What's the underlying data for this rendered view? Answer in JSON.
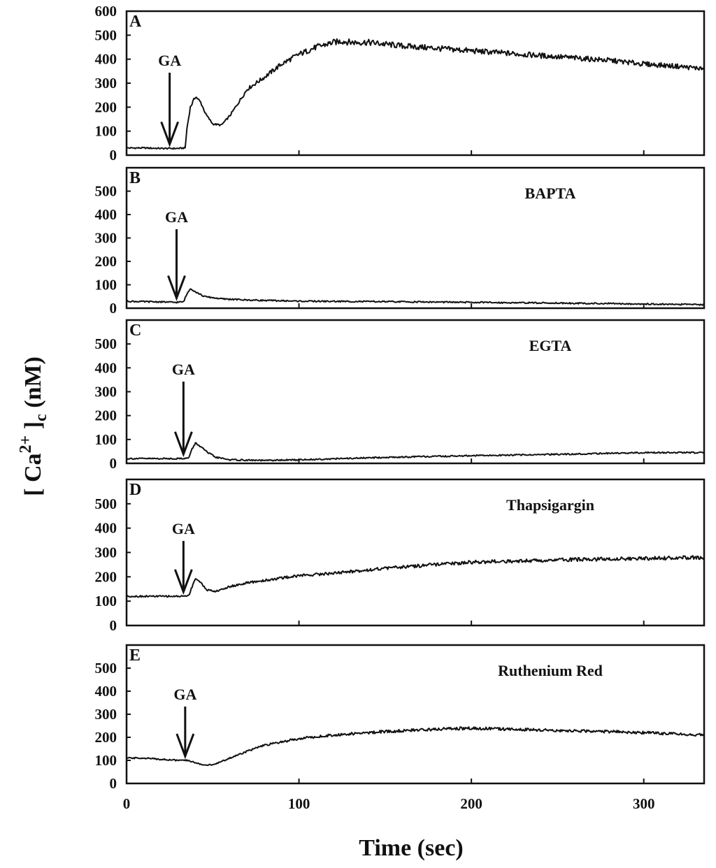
{
  "figure": {
    "ylabel_main": "[ Ca",
    "ylabel_sup": "2+",
    "ylabel_bracket": " ]",
    "ylabel_sub": "c",
    "ylabel_unit": " (nM)",
    "xlabel": "Time (sec)"
  },
  "chart_data": [
    {
      "type": "line",
      "panel_label": "A",
      "condition": "",
      "arrow_label": "GA",
      "arrow_x": 25,
      "xlim": [
        0,
        335
      ],
      "ylim": [
        0,
        600
      ],
      "yticks": [
        "0",
        "100",
        "200",
        "300",
        "400",
        "500",
        "600"
      ],
      "xticks": [],
      "series": [
        {
          "x": [
            0,
            10,
            20,
            30,
            34,
            35,
            37,
            40,
            43,
            46,
            50,
            55,
            60,
            65,
            70,
            80,
            90,
            100,
            110,
            120,
            125,
            130,
            140,
            160,
            180,
            200,
            220,
            240,
            260,
            280,
            300,
            320,
            335
          ],
          "values": [
            30,
            30,
            28,
            28,
            30,
            110,
            200,
            245,
            220,
            170,
            130,
            125,
            165,
            220,
            275,
            325,
            380,
            420,
            450,
            470,
            475,
            470,
            470,
            455,
            445,
            435,
            425,
            415,
            405,
            395,
            380,
            370,
            360
          ]
        }
      ]
    },
    {
      "type": "line",
      "panel_label": "B",
      "condition": "BAPTA",
      "arrow_label": "GA",
      "arrow_x": 29,
      "xlim": [
        0,
        335
      ],
      "ylim": [
        0,
        600
      ],
      "yticks": [
        "0",
        "100",
        "200",
        "300",
        "400",
        "500"
      ],
      "xticks": [],
      "series": [
        {
          "x": [
            0,
            10,
            20,
            28,
            33,
            35,
            37,
            40,
            45,
            55,
            70,
            100,
            150,
            200,
            250,
            300,
            335
          ],
          "values": [
            30,
            28,
            27,
            25,
            27,
            60,
            85,
            70,
            50,
            40,
            35,
            30,
            28,
            25,
            22,
            18,
            15
          ]
        }
      ]
    },
    {
      "type": "line",
      "panel_label": "C",
      "condition": "EGTA",
      "arrow_label": "GA",
      "arrow_x": 33,
      "xlim": [
        0,
        335
      ],
      "ylim": [
        0,
        600
      ],
      "yticks": [
        "0",
        "100",
        "200",
        "300",
        "400",
        "500"
      ],
      "xticks": [],
      "series": [
        {
          "x": [
            0,
            10,
            20,
            30,
            36,
            38,
            40,
            43,
            47,
            52,
            60,
            80,
            100,
            150,
            200,
            250,
            300,
            335
          ],
          "values": [
            20,
            20,
            20,
            20,
            22,
            60,
            85,
            70,
            45,
            25,
            15,
            12,
            15,
            25,
            32,
            38,
            45,
            45
          ]
        }
      ]
    },
    {
      "type": "line",
      "panel_label": "D",
      "condition": "Thapsigargin",
      "arrow_label": "GA",
      "arrow_x": 33,
      "xlim": [
        0,
        335
      ],
      "ylim": [
        0,
        600
      ],
      "yticks": [
        "0",
        "100",
        "200",
        "300",
        "400",
        "500"
      ],
      "xticks": [],
      "series": [
        {
          "x": [
            0,
            10,
            20,
            30,
            36,
            38,
            40,
            43,
            47,
            52,
            60,
            70,
            80,
            100,
            120,
            150,
            200,
            250,
            300,
            335
          ],
          "values": [
            120,
            120,
            120,
            120,
            122,
            160,
            195,
            175,
            145,
            140,
            160,
            175,
            185,
            205,
            215,
            235,
            260,
            270,
            275,
            280
          ]
        }
      ]
    },
    {
      "type": "line",
      "panel_label": "E",
      "condition": "Ruthenium Red",
      "arrow_label": "GA",
      "arrow_x": 34,
      "xlim": [
        0,
        335
      ],
      "ylim": [
        0,
        600
      ],
      "yticks": [
        "0",
        "100",
        "200",
        "300",
        "400",
        "500"
      ],
      "xticks": [
        "0",
        "100",
        "200",
        "300"
      ],
      "series": [
        {
          "x": [
            0,
            10,
            20,
            30,
            35,
            40,
            45,
            50,
            60,
            70,
            80,
            90,
            100,
            120,
            150,
            180,
            200,
            220,
            250,
            280,
            300,
            335
          ],
          "values": [
            110,
            110,
            105,
            100,
            100,
            90,
            80,
            80,
            110,
            140,
            165,
            180,
            195,
            210,
            225,
            235,
            240,
            235,
            230,
            225,
            220,
            210
          ]
        }
      ]
    }
  ]
}
